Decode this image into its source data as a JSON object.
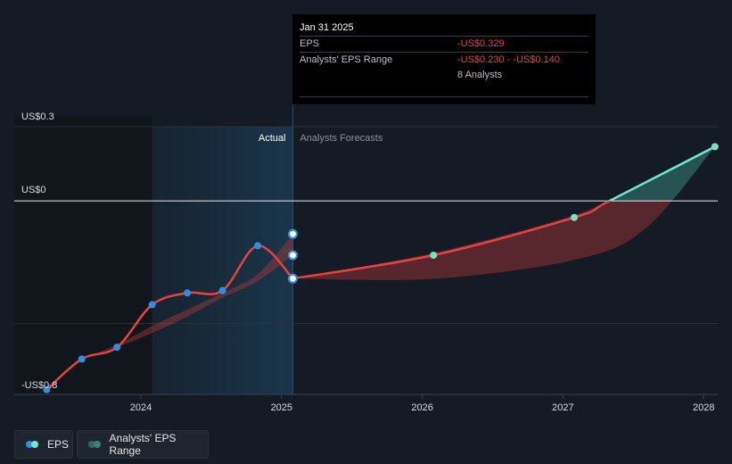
{
  "chart_data": {
    "type": "line",
    "title": "",
    "xlabel": "",
    "ylabel": "",
    "y_tick_labels": [
      {
        "value": 0.3,
        "label": "US$0.3"
      },
      {
        "value": 0,
        "label": "US$0"
      },
      {
        "value": -0.8,
        "label": "-US$0.8"
      }
    ],
    "x_tick_labels": [
      {
        "value": 2024.0,
        "label": "2024"
      },
      {
        "value": 2025.0,
        "label": "2025"
      },
      {
        "value": 2026.0,
        "label": "2026"
      },
      {
        "value": 2027.0,
        "label": "2027"
      },
      {
        "value": 2028.0,
        "label": "2028"
      }
    ],
    "xlim": [
      2023.1,
      2028.1
    ],
    "ylim": [
      -0.82,
      0.36
    ],
    "divider_x": 2025.08,
    "shaded_start_x": 2024.08,
    "region_labels": {
      "actual": "Actual",
      "forecast": "Analysts Forecasts"
    },
    "series": [
      {
        "name": "EPS",
        "kind": "actual",
        "points": [
          {
            "x": 2023.33,
            "y": -0.8
          },
          {
            "x": 2023.58,
            "y": -0.67
          },
          {
            "x": 2023.83,
            "y": -0.62
          },
          {
            "x": 2024.08,
            "y": -0.44
          },
          {
            "x": 2024.33,
            "y": -0.39
          },
          {
            "x": 2024.58,
            "y": -0.38
          },
          {
            "x": 2024.83,
            "y": -0.19
          },
          {
            "x": 2025.08,
            "y": -0.329
          }
        ]
      },
      {
        "name": "EPS",
        "kind": "forecast",
        "points": [
          {
            "x": 2025.08,
            "y": -0.329
          },
          {
            "x": 2026.08,
            "y": -0.23
          },
          {
            "x": 2027.08,
            "y": -0.07
          },
          {
            "x": 2027.33,
            "y": 0.0
          },
          {
            "x": 2028.08,
            "y": 0.23
          }
        ]
      }
    ],
    "hidden_range_markers": [
      {
        "x": 2025.08,
        "y": -0.14
      },
      {
        "x": 2025.08,
        "y": -0.23
      }
    ],
    "actual_band": {
      "x": [
        2023.58,
        2023.83,
        2024.08,
        2024.33,
        2024.58,
        2024.83,
        2025.08
      ],
      "upper": [
        -0.67,
        -0.61,
        -0.53,
        -0.46,
        -0.39,
        -0.31,
        -0.14
      ],
      "lower": [
        -0.67,
        -0.62,
        -0.56,
        -0.49,
        -0.41,
        -0.34,
        -0.23
      ]
    },
    "forecast_band": {
      "x": [
        2025.08,
        2026.08,
        2027.08,
        2027.58,
        2028.08
      ],
      "upper": [
        -0.329,
        -0.22,
        -0.06,
        0.08,
        0.23
      ],
      "lower": [
        -0.329,
        -0.33,
        -0.25,
        -0.12,
        0.23
      ]
    }
  },
  "tooltip": {
    "date": "Jan 31 2025",
    "eps_label": "EPS",
    "eps_value": "-US$0.329",
    "range_label": "Analysts' EPS Range",
    "range_value": "-US$0.230 - -US$0.140",
    "analysts": "8 Analysts"
  },
  "legend": {
    "eps_label": "EPS",
    "range_label": "Analysts' EPS Range"
  },
  "colors": {
    "eps_actual": "#e8433f",
    "eps_positive": "#6ee7d4",
    "marker_actual": "#2f8ee8",
    "marker_forecast": "#72e5c3",
    "band_negative": "#a8373a",
    "band_positive": "#2f6b66",
    "past_shade": "#1b3a52"
  }
}
